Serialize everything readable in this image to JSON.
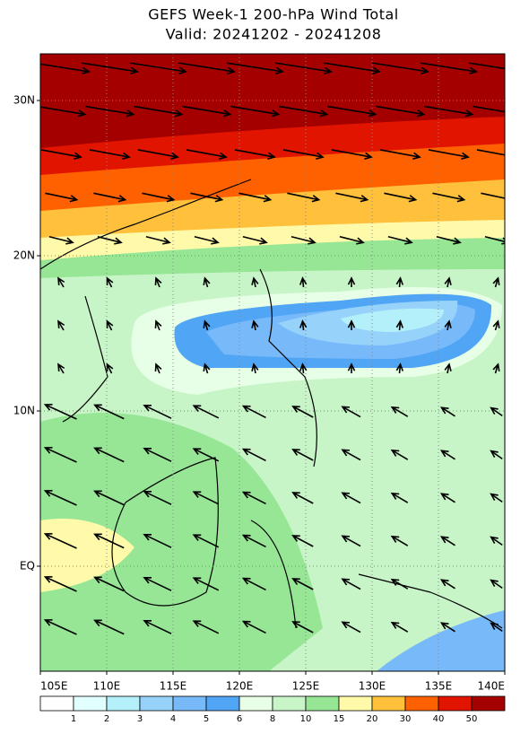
{
  "header": {
    "title": "GEFS Week-1 200-hPa Wind Total",
    "subtitle": "Valid: 20241202 - 20241208"
  },
  "map": {
    "lat_labels": [
      "30N",
      "20N",
      "10N",
      "EQ"
    ],
    "lon_labels": [
      "105E",
      "110E",
      "115E",
      "120E",
      "125E",
      "130E",
      "135E",
      "140E"
    ]
  },
  "colorbar": {
    "labels": [
      "1",
      "2",
      "3",
      "4",
      "5",
      "6",
      "8",
      "10",
      "15",
      "20",
      "30",
      "40",
      "50"
    ],
    "colors": [
      "#ffffff",
      "#e1ffff",
      "#b4f0fa",
      "#96d2fa",
      "#78b9fa",
      "#50a5f5",
      "#e6ffe6",
      "#c8f5c8",
      "#96e696",
      "#fffaaa",
      "#ffc03c",
      "#ff6000",
      "#e11400",
      "#a50000"
    ]
  }
}
